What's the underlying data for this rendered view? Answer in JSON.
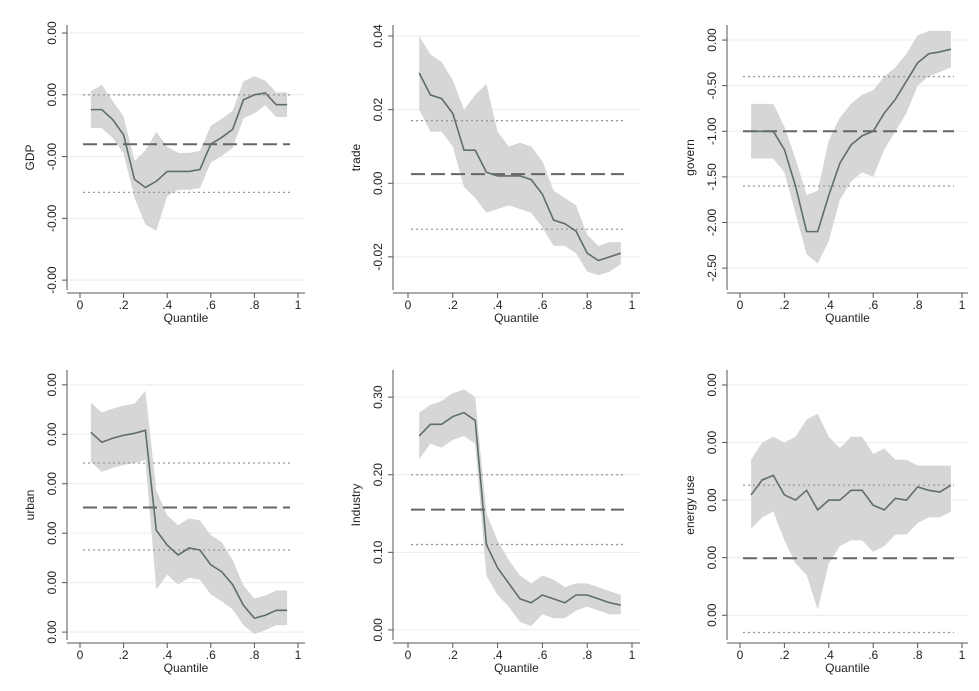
{
  "chart_data": [
    {
      "type": "line",
      "ylabel": "GDP",
      "xlabel": "Quantile",
      "x": [
        0.05,
        0.1,
        0.15,
        0.2,
        0.25,
        0.3,
        0.35,
        0.4,
        0.45,
        0.5,
        0.55,
        0.6,
        0.65,
        0.7,
        0.75,
        0.8,
        0.85,
        0.9,
        0.95
      ],
      "values": [
        -0.00024,
        -0.00024,
        -0.0004,
        -0.00065,
        -0.00137,
        -0.0015,
        -0.0014,
        -0.00124,
        -0.00124,
        -0.00124,
        -0.00121,
        -0.0008,
        -0.00069,
        -0.00056,
        -8e-05,
        0,
        3e-05,
        -0.00016,
        -0.00016
      ],
      "band_upper": [
        6e-05,
        0.00016,
        -0.0001,
        -0.00035,
        -0.00107,
        -0.0009,
        -0.0006,
        -0.00084,
        -0.00094,
        -0.00094,
        -0.00091,
        -0.0005,
        -0.00039,
        -0.00026,
        0.00022,
        0.0003,
        0.00023,
        4e-05,
        4e-05
      ],
      "band_lower": [
        -0.00054,
        -0.00054,
        -0.0007,
        -0.00095,
        -0.00167,
        -0.0021,
        -0.0022,
        -0.00164,
        -0.00154,
        -0.00154,
        -0.00151,
        -0.0011,
        -0.00099,
        -0.00086,
        -0.00038,
        -0.0003,
        -0.00017,
        -0.00036,
        -0.00036
      ],
      "ols": -0.0008,
      "ols_ci": [
        0,
        -0.00158
      ],
      "xlim": [
        0,
        1
      ],
      "xticks": [
        0,
        {
          "value": 0.2,
          "label": ".2"
        },
        {
          "value": 0.4,
          "label": ".4"
        },
        {
          "value": 0.6,
          "label": ".6"
        },
        {
          "value": 0.8,
          "label": ".8"
        },
        1
      ],
      "ylim": [
        -0.00316,
        0.00113
      ],
      "yticks": [
        {
          "value": 0.001,
          "label": "0.00"
        },
        {
          "value": 0,
          "label": "0.00"
        },
        {
          "value": -0.001,
          "label": "-0.00"
        },
        {
          "value": -0.002,
          "label": "-0.00"
        },
        {
          "value": -0.003,
          "label": "-0.00"
        }
      ],
      "grid": true,
      "color": "#5f6e68",
      "band_color": "#d6d6d6"
    },
    {
      "type": "line",
      "ylabel": "trade",
      "xlabel": "Quantile",
      "x": [
        0.05,
        0.1,
        0.15,
        0.2,
        0.25,
        0.3,
        0.35,
        0.4,
        0.45,
        0.5,
        0.55,
        0.6,
        0.65,
        0.7,
        0.75,
        0.8,
        0.85,
        0.9,
        0.95
      ],
      "values": [
        0.03,
        0.024,
        0.023,
        0.019,
        0.009,
        0.009,
        0.003,
        0.002,
        0.002,
        0.002,
        0.001,
        -0.003,
        -0.01,
        -0.011,
        -0.013,
        -0.019,
        -0.021,
        -0.02,
        -0.019
      ],
      "band_upper": [
        0.04,
        0.035,
        0.033,
        0.028,
        0.02,
        0.024,
        0.027,
        0.014,
        0.01,
        0.011,
        0.01,
        0.006,
        -0.002,
        -0.004,
        -0.006,
        -0.014,
        -0.017,
        -0.016,
        -0.016
      ],
      "band_lower": [
        0.02,
        0.014,
        0.014,
        0.01,
        -0.001,
        -0.004,
        -0.008,
        -0.007,
        -0.006,
        -0.007,
        -0.008,
        -0.012,
        -0.017,
        -0.017,
        -0.019,
        -0.024,
        -0.025,
        -0.024,
        -0.022
      ],
      "ols": 0.0025,
      "ols_ci": [
        0.017,
        -0.0125
      ],
      "xlim": [
        0,
        1
      ],
      "xticks": [
        0,
        {
          "value": 0.2,
          "label": ".2"
        },
        {
          "value": 0.4,
          "label": ".4"
        },
        {
          "value": 0.6,
          "label": ".6"
        },
        {
          "value": 0.8,
          "label": ".8"
        },
        1
      ],
      "ylim": [
        -0.029,
        0.043
      ],
      "yticks": [
        {
          "value": 0.04,
          "label": "0.04"
        },
        {
          "value": 0.02,
          "label": "0.02"
        },
        {
          "value": 0,
          "label": "0.00"
        },
        {
          "value": -0.02,
          "label": "-0.02"
        }
      ],
      "grid": true,
      "color": "#5f6e68",
      "band_color": "#d6d6d6"
    },
    {
      "type": "line",
      "ylabel": "govern",
      "xlabel": "Quantile",
      "x": [
        0.05,
        0.1,
        0.15,
        0.2,
        0.25,
        0.3,
        0.35,
        0.4,
        0.45,
        0.5,
        0.55,
        0.6,
        0.65,
        0.7,
        0.75,
        0.8,
        0.85,
        0.9,
        0.95
      ],
      "values": [
        -1.0,
        -1.0,
        -1.0,
        -1.2,
        -1.6,
        -2.1,
        -2.1,
        -1.7,
        -1.35,
        -1.15,
        -1.05,
        -1.0,
        -0.8,
        -0.65,
        -0.45,
        -0.25,
        -0.15,
        -0.13,
        -0.1
      ],
      "band_upper": [
        -0.7,
        -0.7,
        -0.7,
        -0.95,
        -1.3,
        -1.7,
        -1.65,
        -1.1,
        -0.85,
        -0.7,
        -0.6,
        -0.55,
        -0.4,
        -0.3,
        -0.15,
        0.05,
        0.1,
        0.1,
        0.1
      ],
      "band_lower": [
        -1.3,
        -1.3,
        -1.3,
        -1.45,
        -1.9,
        -2.35,
        -2.45,
        -2.2,
        -1.75,
        -1.55,
        -1.45,
        -1.5,
        -1.2,
        -1.0,
        -0.8,
        -0.5,
        -0.4,
        -0.35,
        -0.3
      ],
      "ols": -1.0,
      "ols_ci": [
        -0.4,
        -1.6
      ],
      "xlim": [
        0,
        1
      ],
      "xticks": [
        0,
        {
          "value": 0.2,
          "label": ".2"
        },
        {
          "value": 0.4,
          "label": ".4"
        },
        {
          "value": 0.6,
          "label": ".6"
        },
        {
          "value": 0.8,
          "label": ".8"
        },
        1
      ],
      "ylim": [
        -2.74,
        0.165
      ],
      "yticks": [
        {
          "value": 0,
          "label": "0.00"
        },
        {
          "value": -0.5,
          "label": "-0.50"
        },
        {
          "value": -1,
          "label": "-1.00"
        },
        {
          "value": -1.5,
          "label": "-1.50"
        },
        {
          "value": -2,
          "label": "-2.00"
        },
        {
          "value": -2.5,
          "label": "-2.50"
        }
      ],
      "grid": true,
      "color": "#5f6e68",
      "band_color": "#d6d6d6"
    },
    {
      "type": "line",
      "ylabel": "urban",
      "xlabel": "Quantile",
      "x": [
        0.05,
        0.1,
        0.15,
        0.2,
        0.25,
        0.3,
        0.35,
        0.4,
        0.45,
        0.5,
        0.55,
        0.6,
        0.65,
        0.7,
        0.75,
        0.8,
        0.85,
        0.9,
        0.95
      ],
      "values": [
        0.00202,
        0.00192,
        0.00196,
        0.00199,
        0.00201,
        0.00204,
        0.00103,
        0.00088,
        0.00078,
        0.00085,
        0.00083,
        0.00068,
        0.00061,
        0.00048,
        0.00027,
        0.00014,
        0.00017,
        0.00022,
        0.00022
      ],
      "band_upper": [
        0.00232,
        0.00222,
        0.00226,
        0.00229,
        0.00231,
        0.00244,
        0.00143,
        0.00118,
        0.00108,
        0.00115,
        0.00113,
        0.00098,
        0.00091,
        0.00073,
        0.00047,
        0.00034,
        0.00037,
        0.00042,
        0.00042
      ],
      "band_lower": [
        0.00172,
        0.00162,
        0.00166,
        0.00169,
        0.00171,
        0.00174,
        0.00043,
        0.00058,
        0.00048,
        0.00055,
        0.00053,
        0.00038,
        0.00031,
        0.00023,
        7e-05,
        -2e-05,
        2e-05,
        7e-05,
        7e-05
      ],
      "ols": 0.00126,
      "ols_ci": [
        0.00171,
        0.00083
      ],
      "xlim": [
        0,
        1
      ],
      "xticks": [
        0,
        {
          "value": 0.2,
          "label": ".2"
        },
        {
          "value": 0.4,
          "label": ".4"
        },
        {
          "value": 0.6,
          "label": ".6"
        },
        {
          "value": 0.8,
          "label": ".8"
        },
        1
      ],
      "ylim": [
        -8e-05,
        0.00265
      ],
      "yticks": [
        {
          "value": 0.0025,
          "label": "0.00"
        },
        {
          "value": 0.002,
          "label": "0.00"
        },
        {
          "value": 0.0015,
          "label": "0.00"
        },
        {
          "value": 0.001,
          "label": "0.00"
        },
        {
          "value": 0.0005,
          "label": "0.00"
        },
        {
          "value": 0,
          "label": "0.00"
        }
      ],
      "grid": true,
      "color": "#5f6e68",
      "band_color": "#d6d6d6"
    },
    {
      "type": "line",
      "ylabel": "Industry",
      "xlabel": "Quantile",
      "x": [
        0.05,
        0.1,
        0.15,
        0.2,
        0.25,
        0.3,
        0.35,
        0.4,
        0.45,
        0.5,
        0.55,
        0.6,
        0.65,
        0.7,
        0.75,
        0.8,
        0.85,
        0.9,
        0.95
      ],
      "values": [
        0.25,
        0.265,
        0.265,
        0.275,
        0.28,
        0.27,
        0.11,
        0.08,
        0.06,
        0.04,
        0.035,
        0.045,
        0.04,
        0.035,
        0.045,
        0.045,
        0.04,
        0.035,
        0.032
      ],
      "band_upper": [
        0.28,
        0.29,
        0.295,
        0.305,
        0.31,
        0.3,
        0.15,
        0.115,
        0.09,
        0.07,
        0.06,
        0.07,
        0.065,
        0.055,
        0.06,
        0.06,
        0.055,
        0.05,
        0.045
      ],
      "band_lower": [
        0.22,
        0.24,
        0.235,
        0.245,
        0.25,
        0.24,
        0.07,
        0.045,
        0.03,
        0.01,
        0.005,
        0.02,
        0.015,
        0.015,
        0.025,
        0.03,
        0.025,
        0.02,
        0.02
      ],
      "ols": 0.155,
      "ols_ci": [
        0.2,
        0.11
      ],
      "xlim": [
        0,
        1
      ],
      "xticks": [
        0,
        {
          "value": 0.2,
          "label": ".2"
        },
        {
          "value": 0.4,
          "label": ".4"
        },
        {
          "value": 0.6,
          "label": ".6"
        },
        {
          "value": 0.8,
          "label": ".8"
        },
        1
      ],
      "ylim": [
        -0.013,
        0.335
      ],
      "yticks": [
        {
          "value": 0.3,
          "label": "0.30"
        },
        {
          "value": 0.2,
          "label": "0.20"
        },
        {
          "value": 0.1,
          "label": "0.10"
        },
        {
          "value": 0,
          "label": "0.00"
        }
      ],
      "grid": true,
      "color": "#5f6e68",
      "band_color": "#d6d6d6"
    },
    {
      "type": "line",
      "ylabel": "energy use",
      "xlabel": "Quantile",
      "x": [
        0.05,
        0.1,
        0.15,
        0.2,
        0.25,
        0.3,
        0.35,
        0.4,
        0.45,
        0.5,
        0.55,
        0.6,
        0.65,
        0.7,
        0.75,
        0.8,
        0.85,
        0.9,
        0.95
      ],
      "values": [
        0.00209,
        0.00235,
        0.00243,
        0.00209,
        0.002,
        0.00217,
        0.00183,
        0.002,
        0.002,
        0.00217,
        0.00217,
        0.00191,
        0.00183,
        0.00203,
        0.002,
        0.00223,
        0.00217,
        0.00214,
        0.00226
      ],
      "band_upper": [
        0.0027,
        0.003,
        0.0031,
        0.003,
        0.0031,
        0.0034,
        0.0035,
        0.0031,
        0.0029,
        0.0031,
        0.0031,
        0.0028,
        0.0029,
        0.0027,
        0.0027,
        0.0026,
        0.0026,
        0.0026,
        0.0026
      ],
      "band_lower": [
        0.0015,
        0.0017,
        0.0018,
        0.0013,
        0.0009,
        0.0007,
        0.0001,
        0.0009,
        0.0012,
        0.0013,
        0.0013,
        0.0011,
        0.0012,
        0.0014,
        0.0014,
        0.0016,
        0.0017,
        0.0017,
        0.0018
      ],
      "ols": 0.00099,
      "ols_ci": [
        0.00226,
        -0.0003
      ],
      "xlim": [
        0,
        1
      ],
      "xticks": [
        0,
        {
          "value": 0.2,
          "label": ".2"
        },
        {
          "value": 0.4,
          "label": ".4"
        },
        {
          "value": 0.6,
          "label": ".6"
        },
        {
          "value": 0.8,
          "label": ".8"
        },
        1
      ],
      "ylim": [
        -0.00043,
        0.00426
      ],
      "yticks": [
        {
          "value": 0.004,
          "label": "0.00"
        },
        {
          "value": 0.003,
          "label": "0.00"
        },
        {
          "value": 0.002,
          "label": "0.00"
        },
        {
          "value": 0.001,
          "label": "0.00"
        },
        {
          "value": 0,
          "label": "0.00"
        }
      ],
      "grid": true,
      "color": "#5f6e68",
      "band_color": "#d6d6d6"
    }
  ]
}
